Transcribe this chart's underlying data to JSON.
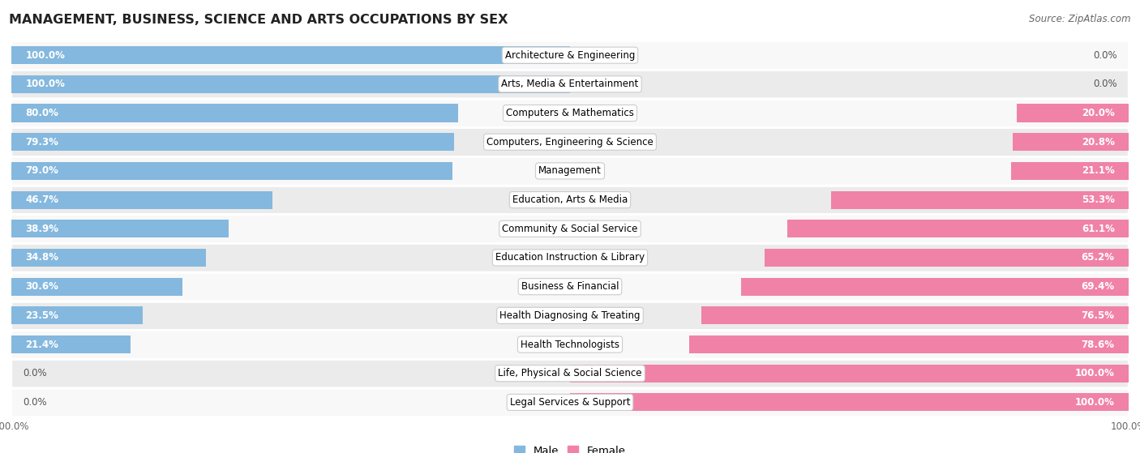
{
  "title": "MANAGEMENT, BUSINESS, SCIENCE AND ARTS OCCUPATIONS BY SEX",
  "source": "Source: ZipAtlas.com",
  "categories": [
    "Architecture & Engineering",
    "Arts, Media & Entertainment",
    "Computers & Mathematics",
    "Computers, Engineering & Science",
    "Management",
    "Education, Arts & Media",
    "Community & Social Service",
    "Education Instruction & Library",
    "Business & Financial",
    "Health Diagnosing & Treating",
    "Health Technologists",
    "Life, Physical & Social Science",
    "Legal Services & Support"
  ],
  "male_pct": [
    100.0,
    100.0,
    80.0,
    79.3,
    79.0,
    46.7,
    38.9,
    34.8,
    30.6,
    23.5,
    21.4,
    0.0,
    0.0
  ],
  "female_pct": [
    0.0,
    0.0,
    20.0,
    20.8,
    21.1,
    53.3,
    61.1,
    65.2,
    69.4,
    76.5,
    78.6,
    100.0,
    100.0
  ],
  "male_color": "#85b8de",
  "female_color": "#f082a8",
  "male_label": "Male",
  "female_label": "Female",
  "bg_color": "#ffffff",
  "row_bg_even": "#ebebeb",
  "row_bg_odd": "#f8f8f8",
  "title_fontsize": 11.5,
  "source_fontsize": 8.5,
  "label_fontsize": 8.5,
  "pct_fontsize_inside": 8.5,
  "pct_fontsize_outside": 8.5,
  "legend_fontsize": 9.5
}
